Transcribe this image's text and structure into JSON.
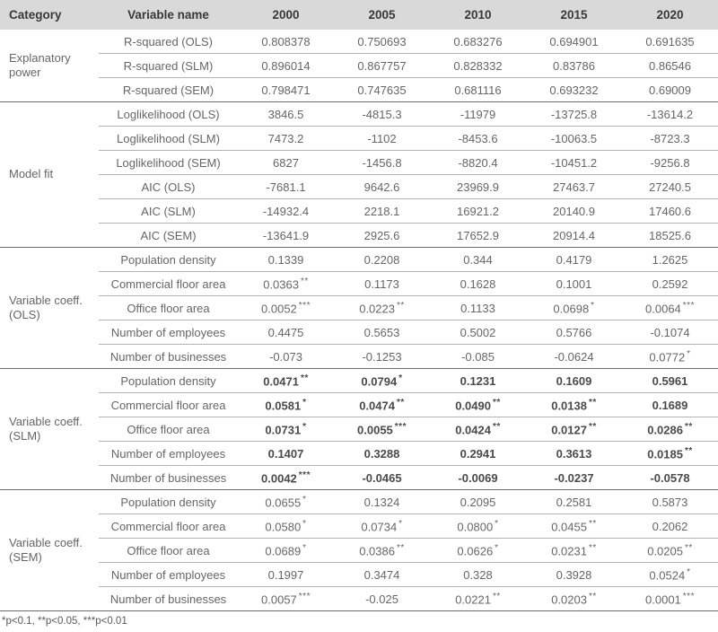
{
  "table": {
    "headers": [
      "Category",
      "Variable name",
      "2000",
      "2005",
      "2010",
      "2015",
      "2020"
    ],
    "groups": [
      {
        "category": "Explanatory power",
        "bold": false,
        "rows": [
          {
            "name": "R-squared (OLS)",
            "values": [
              "0.808378",
              "0.750693",
              "0.683276",
              "0.694901",
              "0.691635"
            ]
          },
          {
            "name": "R-squared (SLM)",
            "values": [
              "0.896014",
              "0.867757",
              "0.828332",
              "0.83786",
              "0.86546"
            ]
          },
          {
            "name": "R-squared (SEM)",
            "values": [
              "0.798471",
              "0.747635",
              "0.681116",
              "0.693232",
              "0.69009"
            ]
          }
        ]
      },
      {
        "category": "Model fit",
        "bold": false,
        "rows": [
          {
            "name": "Loglikelihood (OLS)",
            "values": [
              "3846.5",
              "-4815.3",
              "-11979",
              "-13725.8",
              "-13614.2"
            ]
          },
          {
            "name": "Loglikelihood (SLM)",
            "values": [
              "7473.2",
              "-1102",
              "-8453.6",
              "-10063.5",
              "-8723.3"
            ]
          },
          {
            "name": "Loglikelihood (SEM)",
            "values": [
              "6827",
              "-1456.8",
              "-8820.4",
              "-10451.2",
              "-9256.8"
            ]
          },
          {
            "name": "AIC (OLS)",
            "values": [
              "-7681.1",
              "9642.6",
              "23969.9",
              "27463.7",
              "27240.5"
            ]
          },
          {
            "name": "AIC (SLM)",
            "values": [
              "-14932.4",
              "2218.1",
              "16921.2",
              "20140.9",
              "17460.6"
            ]
          },
          {
            "name": "AIC (SEM)",
            "values": [
              "-13641.9",
              "2925.6",
              "17652.9",
              "20914.4",
              "18525.6"
            ]
          }
        ]
      },
      {
        "category": "Variable coeff. (OLS)",
        "bold": false,
        "rows": [
          {
            "name": "Population density",
            "values": [
              "0.1339",
              "0.2208",
              "0.344",
              "0.4179",
              "1.2625"
            ]
          },
          {
            "name": "Commercial floor area",
            "values": [
              "0.0363 **",
              "0.1173",
              "0.1628",
              "0.1001",
              "0.2592"
            ]
          },
          {
            "name": "Office floor area",
            "values": [
              "0.0052 ***",
              "0.0223 **",
              "0.1133",
              "0.0698 *",
              "0.0064 ***"
            ]
          },
          {
            "name": "Number of employees",
            "values": [
              "0.4475",
              "0.5653",
              "0.5002",
              "0.5766",
              "-0.1074"
            ]
          },
          {
            "name": "Number of businesses",
            "values": [
              "-0.073",
              "-0.1253",
              "-0.085",
              "-0.0624",
              "0.0772 *"
            ]
          }
        ]
      },
      {
        "category": "Variable coeff. (SLM)",
        "bold": true,
        "rows": [
          {
            "name": "Population density",
            "values": [
              "0.0471 **",
              "0.0794 *",
              "0.1231",
              "0.1609",
              "0.5961"
            ]
          },
          {
            "name": "Commercial floor area",
            "values": [
              "0.0581 *",
              "0.0474 **",
              "0.0490 **",
              "0.0138 **",
              "0.1689"
            ]
          },
          {
            "name": "Office floor area",
            "values": [
              "0.0731 *",
              "0.0055 ***",
              "0.0424 **",
              "0.0127 **",
              "0.0286 **"
            ]
          },
          {
            "name": "Number of employees",
            "values": [
              "0.1407",
              "0.3288",
              "0.2941",
              "0.3613",
              "0.0185 **"
            ]
          },
          {
            "name": "Number of businesses",
            "values": [
              "0.0042 ***",
              "-0.0465",
              "-0.0069",
              "-0.0237",
              "-0.0578"
            ]
          }
        ]
      },
      {
        "category": "Variable coeff. (SEM)",
        "bold": false,
        "rows": [
          {
            "name": "Population density",
            "values": [
              "0.0655 *",
              "0.1324",
              "0.2095",
              "0.2581",
              "0.5873"
            ]
          },
          {
            "name": "Commercial floor area",
            "values": [
              "0.0580 *",
              "0.0734 *",
              "0.0800 *",
              "0.0455 **",
              "0.2062"
            ]
          },
          {
            "name": "Office floor area",
            "values": [
              "0.0689 *",
              "0.0386 **",
              "0.0626 *",
              "0.0231 **",
              "0.0205 **"
            ]
          },
          {
            "name": "Number of employees",
            "values": [
              "0.1997",
              "0.3474",
              "0.328",
              "0.3928",
              "0.0524 *"
            ]
          },
          {
            "name": "Number of businesses",
            "values": [
              "0.0057 ***",
              "-0.025",
              "0.0221 **",
              "0.0203 **",
              "0.0001 ***"
            ]
          }
        ]
      }
    ],
    "footnote": "*p<0.1, **p<0.05, ***p<0.01"
  },
  "colors": {
    "header_bg": "#d9d9d9",
    "header_text": "#383838",
    "body_text": "#666666",
    "bold_text": "#4a4a4a",
    "inner_line": "#b3b3b3",
    "group_line": "#6b6b6b"
  }
}
